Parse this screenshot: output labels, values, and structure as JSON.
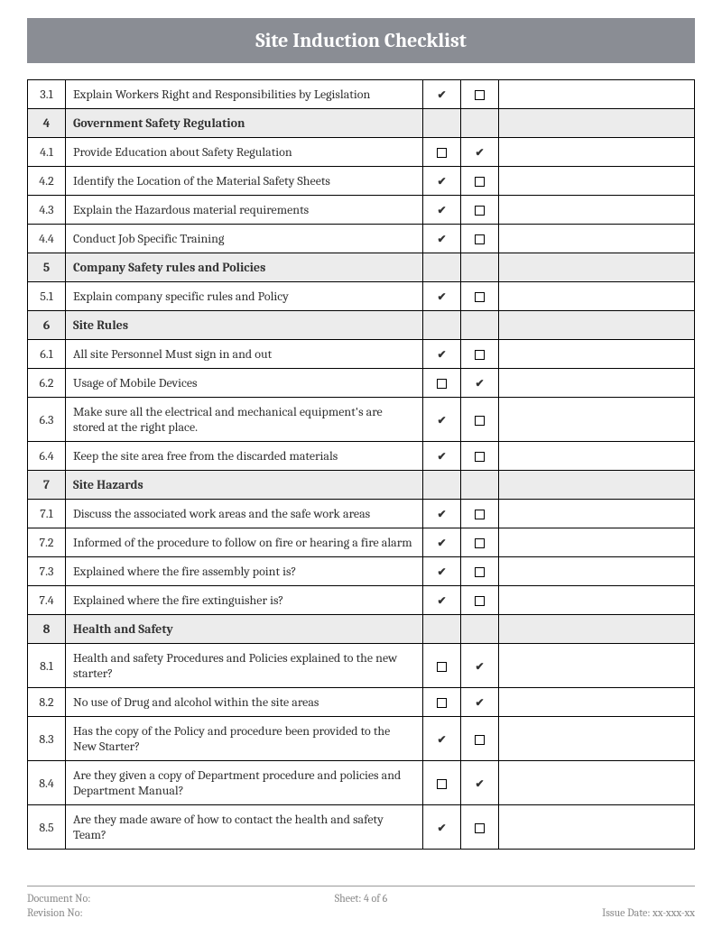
{
  "title": "Site Induction Checklist",
  "colors": {
    "title_bg": "#8a8d94",
    "title_text": "#ffffff",
    "section_bg": "#ececec",
    "border": "#000000",
    "footer_text": "#888888"
  },
  "fonts": {
    "title_fontsize": 22,
    "body_fontsize": 14,
    "footer_fontsize": 12
  },
  "rows": [
    {
      "type": "item",
      "num": "3.1",
      "desc": "Explain Workers Right and Responsibilities by Legislation",
      "col1": "check",
      "col2": "box"
    },
    {
      "type": "section",
      "num": "4",
      "desc": "Government Safety Regulation"
    },
    {
      "type": "item",
      "num": "4.1",
      "desc": "Provide Education about Safety Regulation",
      "col1": "box",
      "col2": "check"
    },
    {
      "type": "item",
      "num": "4.2",
      "desc": "Identify the Location of the Material Safety Sheets",
      "col1": "check",
      "col2": "box"
    },
    {
      "type": "item",
      "num": "4.3",
      "desc": "Explain the Hazardous material requirements",
      "col1": "check",
      "col2": "box"
    },
    {
      "type": "item",
      "num": "4.4",
      "desc": "Conduct Job Specific Training",
      "col1": "check",
      "col2": "box"
    },
    {
      "type": "section",
      "num": "5",
      "desc": "Company Safety rules and Policies"
    },
    {
      "type": "item",
      "num": "5.1",
      "desc": "Explain company specific rules and Policy",
      "col1": "check",
      "col2": "box"
    },
    {
      "type": "section",
      "num": "6",
      "desc": "Site Rules"
    },
    {
      "type": "item",
      "num": "6.1",
      "desc": "All site Personnel Must sign in and out",
      "col1": "check",
      "col2": "box"
    },
    {
      "type": "item",
      "num": "6.2",
      "desc": "Usage of Mobile Devices",
      "col1": "box",
      "col2": "check"
    },
    {
      "type": "item",
      "num": "6.3",
      "desc": "Make sure all the electrical and mechanical equipment's are stored at the right place.",
      "col1": "check",
      "col2": "box"
    },
    {
      "type": "item",
      "num": "6.4",
      "desc": "Keep the site area free from the discarded materials",
      "col1": "check",
      "col2": "box"
    },
    {
      "type": "section",
      "num": "7",
      "desc": "Site Hazards"
    },
    {
      "type": "item",
      "num": "7.1",
      "desc": "Discuss the associated work areas and the safe work areas",
      "col1": "check",
      "col2": "box"
    },
    {
      "type": "item",
      "num": "7.2",
      "desc": "Informed of the procedure to follow on fire or hearing a fire alarm",
      "col1": "check",
      "col2": "box"
    },
    {
      "type": "item",
      "num": "7.3",
      "desc": "Explained where the fire assembly point is?",
      "col1": "check",
      "col2": "box"
    },
    {
      "type": "item",
      "num": "7.4",
      "desc": "Explained where the fire extinguisher is?",
      "col1": "check",
      "col2": "box"
    },
    {
      "type": "section",
      "num": "8",
      "desc": "Health and Safety"
    },
    {
      "type": "item",
      "num": "8.1",
      "desc": "Health and safety Procedures and Policies explained to the new starter?",
      "col1": "box",
      "col2": "check"
    },
    {
      "type": "item",
      "num": "8.2",
      "desc": "No use of Drug and alcohol within the site areas",
      "col1": "box",
      "col2": "check"
    },
    {
      "type": "item",
      "num": "8.3",
      "desc": "Has the copy of the Policy and procedure been provided to the New Starter?",
      "col1": "check",
      "col2": "box"
    },
    {
      "type": "item",
      "num": "8.4",
      "desc": "Are they given a copy of Department procedure and policies and Department Manual?",
      "col1": "box",
      "col2": "check"
    },
    {
      "type": "item",
      "num": "8.5",
      "desc": "Are they made aware of how to contact the health and safety Team?",
      "col1": "check",
      "col2": "box"
    }
  ],
  "footer": {
    "doc_no_label": "Document No:",
    "sheet_label": "Sheet: 4 of 6",
    "revision_label": "Revision No:",
    "issue_date_label": "Issue Date: xx-xxx-xx"
  }
}
